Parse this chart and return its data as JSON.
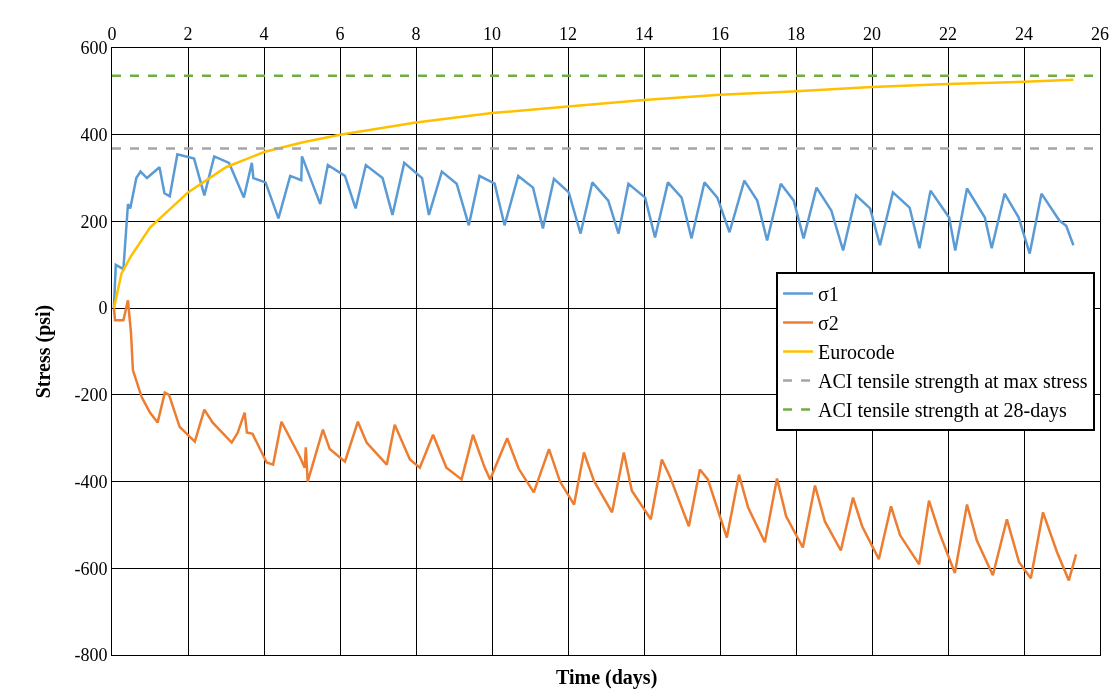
{
  "chart_data": {
    "type": "line",
    "xlabel": "Time (days)",
    "ylabel": "Stress (psi)",
    "xlim": [
      0,
      26
    ],
    "xticks": [
      0,
      2,
      4,
      6,
      8,
      10,
      12,
      14,
      16,
      18,
      20,
      22,
      24,
      26
    ],
    "ylim": [
      -800,
      600
    ],
    "yticks": [
      -800,
      -600,
      -400,
      -200,
      0,
      200,
      400,
      600
    ],
    "grid": true,
    "legend": "right",
    "series": [
      {
        "name": "σ1",
        "color": "#5b9bd5",
        "x": [
          0.05,
          0.1,
          0.3,
          0.42,
          0.48,
          0.64,
          0.75,
          0.92,
          1.25,
          1.38,
          1.52,
          1.72,
          2.16,
          2.43,
          2.69,
          3.08,
          3.47,
          3.68,
          3.72,
          4.04,
          4.38,
          4.69,
          4.98,
          5.0,
          5.48,
          5.68,
          6.13,
          6.41,
          6.68,
          7.12,
          7.38,
          7.69,
          8.16,
          8.34,
          8.68,
          9.07,
          9.39,
          9.67,
          10.07,
          10.33,
          10.69,
          11.08,
          11.34,
          11.63,
          12.02,
          12.33,
          12.64,
          13.06,
          13.33,
          13.59,
          14.03,
          14.29,
          14.63,
          14.99,
          15.25,
          15.59,
          15.93,
          16.25,
          16.64,
          16.98,
          17.24,
          17.6,
          17.94,
          18.2,
          18.54,
          18.93,
          19.24,
          19.58,
          19.95,
          20.21,
          20.55,
          20.99,
          21.25,
          21.54,
          22.03,
          22.19,
          22.5,
          22.97,
          23.15,
          23.49,
          23.86,
          24.15,
          24.46,
          24.93,
          25.11,
          25.3
        ],
        "values": [
          0,
          100,
          90,
          240,
          230,
          300,
          315,
          300,
          325,
          265,
          258,
          355,
          345,
          260,
          350,
          335,
          255,
          335,
          300,
          290,
          207,
          305,
          295,
          350,
          240,
          330,
          305,
          230,
          330,
          300,
          215,
          335,
          300,
          215,
          315,
          287,
          191,
          305,
          287,
          191,
          305,
          278,
          184,
          298,
          267,
          172,
          290,
          248,
          172,
          287,
          255,
          163,
          290,
          255,
          161,
          290,
          255,
          175,
          294,
          248,
          156,
          287,
          248,
          161,
          278,
          225,
          133,
          260,
          230,
          145,
          267,
          232,
          138,
          271,
          209,
          133,
          276,
          209,
          138,
          264,
          209,
          126,
          264,
          202,
          190,
          145
        ]
      },
      {
        "name": "σ2",
        "color": "#ed7d31",
        "x": [
          0.05,
          0.08,
          0.3,
          0.42,
          0.5,
          0.55,
          0.78,
          1.0,
          1.2,
          1.39,
          1.5,
          1.78,
          2.18,
          2.43,
          2.65,
          3.15,
          3.31,
          3.49,
          3.55,
          3.7,
          4.07,
          4.24,
          4.46,
          4.94,
          5.07,
          5.1,
          5.15,
          5.55,
          5.73,
          6.13,
          6.47,
          6.7,
          7.23,
          7.44,
          7.84,
          8.1,
          8.45,
          8.8,
          9.2,
          9.5,
          9.8,
          9.95,
          10.4,
          10.7,
          11.1,
          11.5,
          11.79,
          12.16,
          12.42,
          12.68,
          13.16,
          13.47,
          13.68,
          14.18,
          14.47,
          14.68,
          15.18,
          15.47,
          15.68,
          16.18,
          16.5,
          16.74,
          17.18,
          17.5,
          17.74,
          18.18,
          18.5,
          18.76,
          19.18,
          19.5,
          19.74,
          20.18,
          20.5,
          20.74,
          21.24,
          21.5,
          21.76,
          22.18,
          22.5,
          22.76,
          23.18,
          23.55,
          23.87,
          24.18,
          24.5,
          24.87,
          25.18,
          25.37
        ],
        "values": [
          0,
          -28,
          -28,
          18,
          -57,
          -143,
          -205,
          -241,
          -264,
          -195,
          -200,
          -274,
          -308,
          -234,
          -264,
          -310,
          -287,
          -241,
          -287,
          -290,
          -356,
          -361,
          -262,
          -342,
          -368,
          -321,
          -400,
          -280,
          -325,
          -354,
          -262,
          -310,
          -361,
          -269,
          -349,
          -368,
          -292,
          -368,
          -395,
          -292,
          -366,
          -395,
          -300,
          -370,
          -425,
          -325,
          -400,
          -453,
          -333,
          -398,
          -471,
          -333,
          -421,
          -487,
          -349,
          -388,
          -503,
          -372,
          -395,
          -529,
          -384,
          -460,
          -540,
          -393,
          -480,
          -552,
          -409,
          -492,
          -559,
          -437,
          -503,
          -579,
          -457,
          -524,
          -591,
          -444,
          -515,
          -611,
          -453,
          -536,
          -616,
          -487,
          -586,
          -623,
          -471,
          -563,
          -628,
          -568
        ]
      },
      {
        "name": "Eurocode",
        "color": "#ffc000",
        "x": [
          0.05,
          0.25,
          0.5,
          1,
          2,
          3,
          4,
          5,
          6,
          8,
          10,
          12,
          14,
          16,
          18,
          20,
          22,
          24,
          25.3
        ],
        "values": [
          0,
          80,
          120,
          186,
          267,
          325,
          360,
          382,
          400,
          428,
          450,
          465,
          480,
          492,
          500,
          510,
          517,
          522,
          527
        ]
      }
    ],
    "ref_lines": [
      {
        "axis": "y",
        "value": 368,
        "label": "ACI tensile strength at max stress",
        "color": "#a5a5a5",
        "line_style": "dashed"
      },
      {
        "axis": "y",
        "value": 536,
        "label": "ACI tensile strength at 28-days",
        "color": "#70ad47",
        "line_style": "dashed"
      }
    ]
  }
}
